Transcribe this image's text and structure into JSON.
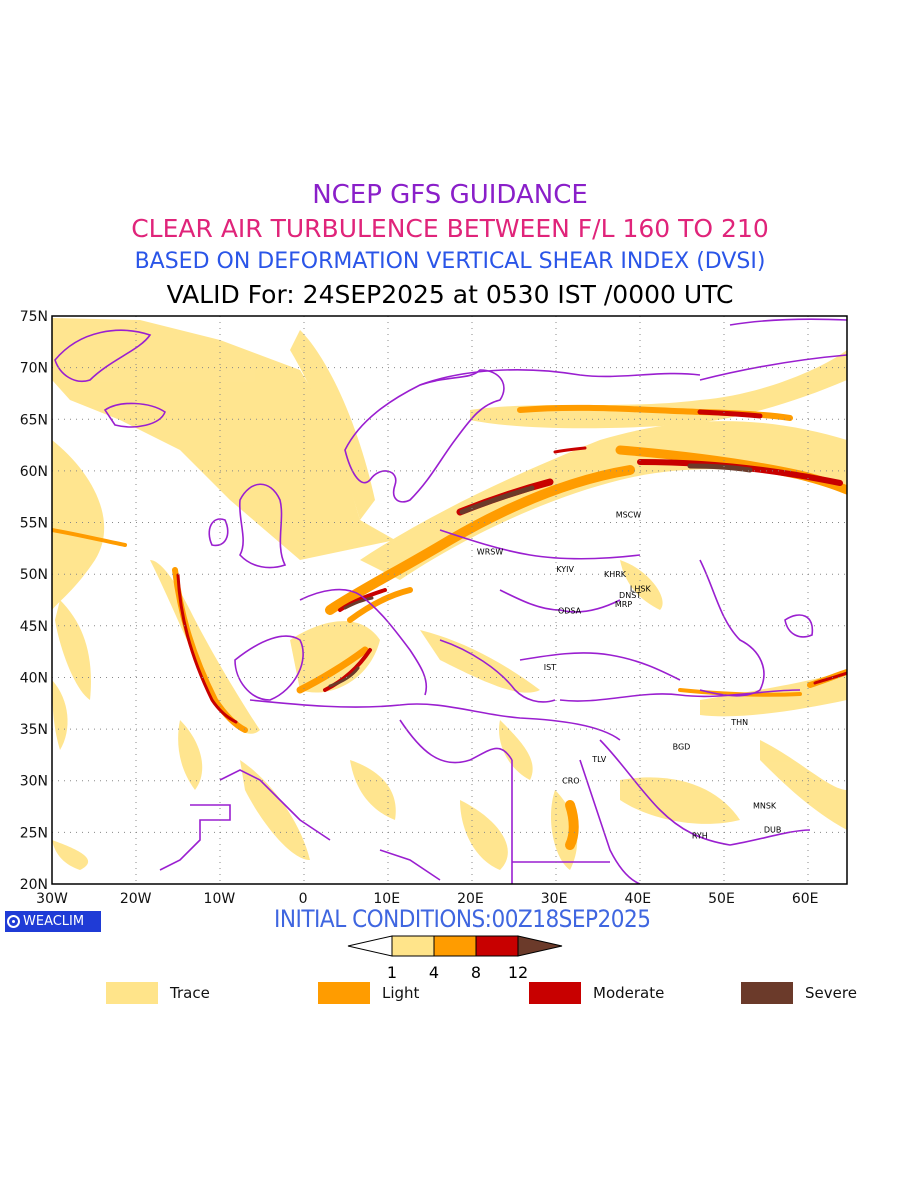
{
  "titles": {
    "line1": "NCEP GFS GUIDANCE",
    "line2": "CLEAR AIR TURBULENCE BETWEEN F/L 160 TO 210",
    "line3": "BASED ON DEFORMATION VERTICAL SHEAR INDEX (DVSI)",
    "line4": "VALID For: 24SEP2025 at 0530 IST /0000 UTC"
  },
  "map": {
    "lat_labels": [
      "75N",
      "70N",
      "65N",
      "60N",
      "55N",
      "50N",
      "45N",
      "40N",
      "35N",
      "30N",
      "25N",
      "20N"
    ],
    "lon_labels": [
      "30W",
      "20W",
      "10W",
      "0",
      "10E",
      "20E",
      "30E",
      "40E",
      "50E",
      "60E"
    ],
    "stations": [
      {
        "name": "MSCW",
        "lon": 37.6,
        "lat": 55.8
      },
      {
        "name": "WRSW",
        "lon": 21.0,
        "lat": 52.2
      },
      {
        "name": "KYIV",
        "lon": 30.5,
        "lat": 50.5
      },
      {
        "name": "KHRK",
        "lon": 36.2,
        "lat": 50.0
      },
      {
        "name": "LHSK",
        "lon": 39.3,
        "lat": 48.6
      },
      {
        "name": "DNST",
        "lon": 38.0,
        "lat": 48.0
      },
      {
        "name": "MRP",
        "lon": 37.5,
        "lat": 47.1
      },
      {
        "name": "ODSA",
        "lon": 30.7,
        "lat": 46.5
      },
      {
        "name": "IST",
        "lon": 29.0,
        "lat": 41.0
      },
      {
        "name": "THN",
        "lon": 51.4,
        "lat": 35.7
      },
      {
        "name": "BGD",
        "lon": 44.4,
        "lat": 33.3
      },
      {
        "name": "TLV",
        "lon": 34.8,
        "lat": 32.1
      },
      {
        "name": "CRO",
        "lon": 31.2,
        "lat": 30.0
      },
      {
        "name": "MNSK",
        "lon": 54.0,
        "lat": 27.6
      },
      {
        "name": "DUB",
        "lon": 55.3,
        "lat": 25.3
      },
      {
        "name": "RYH",
        "lon": 46.7,
        "lat": 24.7
      }
    ]
  },
  "badge": {
    "label": "WEACLIM"
  },
  "initial_conditions": "INITIAL CONDITIONS:00Z18SEP2025",
  "colorbar": {
    "ticks": [
      "1",
      "4",
      "8",
      "12"
    ],
    "colors": [
      "#ffe48a",
      "#ff9c00",
      "#c80000",
      "#6b3a2a"
    ]
  },
  "legend": [
    {
      "label": "Trace",
      "color": "#ffe48a"
    },
    {
      "label": "Light",
      "color": "#ff9c00"
    },
    {
      "label": "Moderate",
      "color": "#c80000"
    },
    {
      "label": "Severe",
      "color": "#6b3a2a"
    }
  ]
}
